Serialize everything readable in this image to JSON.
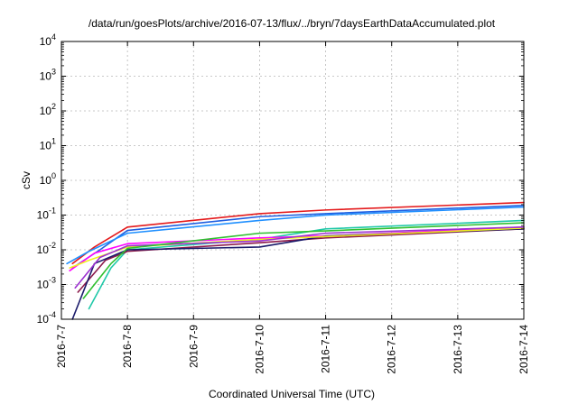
{
  "chart_data": {
    "type": "line",
    "title": "/data/run/goesPlots/archive/2016-07-13/flux/../bryn/7daysEarthDataAccumulated.plot",
    "xlabel": "Coordinated Universal Time (UTC)",
    "ylabel": "cSv",
    "x_scale": "time",
    "y_scale": "log",
    "xlim": [
      "2016-07-07",
      "2016-07-14"
    ],
    "ylim": [
      0.0001,
      10000
    ],
    "x_ticks": [
      "2016-7-7",
      "2016-7-8",
      "2016-7-9",
      "2016-7-10",
      "2016-7-11",
      "2016-7-12",
      "2016-7-13",
      "2016-7-14"
    ],
    "y_ticks": [
      {
        "value": 0.0001,
        "base": "10",
        "exp": "-4"
      },
      {
        "value": 0.001,
        "base": "10",
        "exp": "-3"
      },
      {
        "value": 0.01,
        "base": "10",
        "exp": "-2"
      },
      {
        "value": 0.1,
        "base": "10",
        "exp": "-1"
      },
      {
        "value": 1,
        "base": "10",
        "exp": "0"
      },
      {
        "value": 10,
        "base": "10",
        "exp": "1"
      },
      {
        "value": 100,
        "base": "10",
        "exp": "2"
      },
      {
        "value": 1000,
        "base": "10",
        "exp": "3"
      },
      {
        "value": 10000,
        "base": "10",
        "exp": "4"
      }
    ],
    "grid": true,
    "series": [
      {
        "color": "#e41a1c",
        "points": [
          [
            "2016-07-07T04:00",
            0.004
          ],
          [
            "2016-07-07T12:00",
            0.012
          ],
          [
            "2016-07-08T00:00",
            0.045
          ],
          [
            "2016-07-10T00:00",
            0.11
          ],
          [
            "2016-07-11T00:00",
            0.14
          ],
          [
            "2016-07-14T00:00",
            0.23
          ]
        ]
      },
      {
        "color": "#1f5fe0",
        "points": [
          [
            "2016-07-07T04:00",
            0.003
          ],
          [
            "2016-07-07T14:00",
            0.01
          ],
          [
            "2016-07-08T00:00",
            0.036
          ],
          [
            "2016-07-10T00:00",
            0.09
          ],
          [
            "2016-07-11T00:00",
            0.11
          ],
          [
            "2016-07-14T00:00",
            0.19
          ]
        ]
      },
      {
        "color": "#1fc8a8",
        "points": [
          [
            "2016-07-07T10:00",
            0.0002
          ],
          [
            "2016-07-07T18:00",
            0.003
          ],
          [
            "2016-07-08T00:00",
            0.01
          ],
          [
            "2016-07-10T00:00",
            0.02
          ],
          [
            "2016-07-11T00:00",
            0.04
          ],
          [
            "2016-07-14T00:00",
            0.07
          ]
        ]
      },
      {
        "color": "#ff00ff",
        "points": [
          [
            "2016-07-07T03:00",
            0.0025
          ],
          [
            "2016-07-07T12:00",
            0.008
          ],
          [
            "2016-07-08T00:00",
            0.015
          ],
          [
            "2016-07-10T00:00",
            0.022
          ],
          [
            "2016-07-11T00:00",
            0.025
          ],
          [
            "2016-07-14T00:00",
            0.045
          ]
        ]
      },
      {
        "color": "#8b1a4a",
        "points": [
          [
            "2016-07-07T06:00",
            0.0006
          ],
          [
            "2016-07-07T16:00",
            0.005
          ],
          [
            "2016-07-08T00:00",
            0.009
          ],
          [
            "2016-07-10T00:00",
            0.016
          ],
          [
            "2016-07-11T00:00",
            0.022
          ],
          [
            "2016-07-14T00:00",
            0.04
          ]
        ]
      },
      {
        "color": "#1a1a6a",
        "points": [
          [
            "2016-07-07T04:00",
            0.0001
          ],
          [
            "2016-07-07T12:00",
            0.004
          ],
          [
            "2016-07-08T00:00",
            0.01
          ],
          [
            "2016-07-10T00:00",
            0.012
          ],
          [
            "2016-07-11T00:00",
            0.025
          ],
          [
            "2016-07-14T00:00",
            0.04
          ]
        ]
      },
      {
        "color": "#f0f020",
        "points": [
          [
            "2016-07-07T03:00",
            0.003
          ],
          [
            "2016-07-07T10:00",
            0.005
          ],
          [
            "2016-07-08T00:00",
            0.012
          ],
          [
            "2016-07-10T00:00",
            0.02
          ],
          [
            "2016-07-11T00:00",
            0.024
          ],
          [
            "2016-07-14T00:00",
            0.042
          ]
        ]
      },
      {
        "color": "#9b30d0",
        "points": [
          [
            "2016-07-07T05:00",
            0.0008
          ],
          [
            "2016-07-07T14:00",
            0.006
          ],
          [
            "2016-07-08T00:00",
            0.013
          ],
          [
            "2016-07-10T00:00",
            0.018
          ],
          [
            "2016-07-11T00:00",
            0.03
          ],
          [
            "2016-07-14T00:00",
            0.045
          ]
        ]
      },
      {
        "color": "#2090ff",
        "points": [
          [
            "2016-07-07T02:00",
            0.004
          ],
          [
            "2016-07-07T10:00",
            0.009
          ],
          [
            "2016-07-08T00:00",
            0.03
          ],
          [
            "2016-07-10T00:00",
            0.07
          ],
          [
            "2016-07-11T00:00",
            0.1
          ],
          [
            "2016-07-14T00:00",
            0.17
          ]
        ]
      },
      {
        "color": "#30c030",
        "points": [
          [
            "2016-07-07T08:00",
            0.0004
          ],
          [
            "2016-07-07T18:00",
            0.004
          ],
          [
            "2016-07-08T00:00",
            0.011
          ],
          [
            "2016-07-10T00:00",
            0.03
          ],
          [
            "2016-07-11T00:00",
            0.035
          ],
          [
            "2016-07-14T00:00",
            0.06
          ]
        ]
      }
    ]
  }
}
